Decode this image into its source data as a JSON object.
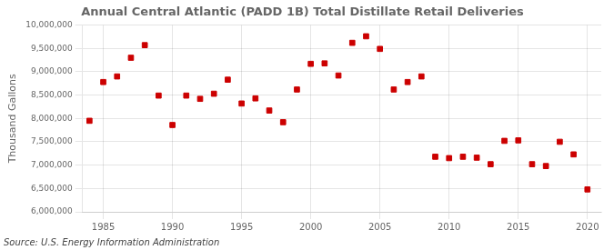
{
  "chart_data": {
    "type": "scatter",
    "title": "Annual Central Atlantic (PADD 1B) Total Distillate Retail Deliveries",
    "ylabel": "Thousand Gallons",
    "annotations": [
      "Source: U.S. Energy Information Administration"
    ],
    "x": [
      1984,
      1985,
      1986,
      1987,
      1988,
      1989,
      1990,
      1991,
      1992,
      1993,
      1994,
      1995,
      1996,
      1997,
      1998,
      1999,
      2000,
      2001,
      2002,
      2003,
      2004,
      2005,
      2006,
      2007,
      2008,
      2009,
      2010,
      2011,
      2012,
      2013,
      2014,
      2015,
      2016,
      2017,
      2018,
      2019,
      2020
    ],
    "values": [
      7950000,
      8780000,
      8900000,
      9300000,
      9570000,
      8490000,
      7860000,
      8490000,
      8420000,
      8530000,
      8830000,
      8320000,
      8430000,
      8170000,
      7920000,
      8620000,
      9170000,
      9180000,
      8920000,
      9620000,
      9760000,
      9490000,
      8620000,
      8780000,
      8900000,
      7180000,
      7150000,
      7180000,
      7160000,
      7020000,
      7520000,
      7530000,
      7020000,
      6980000,
      7500000,
      7230000,
      6480000
    ],
    "color": "#cc0000",
    "marker": "square",
    "xlim": [
      1983.5,
      2021
    ],
    "ylim": [
      6000000,
      10000000
    ],
    "xticks": [
      1985,
      1990,
      1995,
      2000,
      2005,
      2010,
      2015,
      2020
    ],
    "yticks": [
      {
        "value": 6000000,
        "label": "6,000,000"
      },
      {
        "value": 6500000,
        "label": "6,500,000"
      },
      {
        "value": 7000000,
        "label": "7,000,000"
      },
      {
        "value": 7500000,
        "label": "7,500,000"
      },
      {
        "value": 8000000,
        "label": "8,000,000"
      },
      {
        "value": 8500000,
        "label": "8,500,000"
      },
      {
        "value": 9000000,
        "label": "9,000,000"
      },
      {
        "value": 9500000,
        "label": "9,500,000"
      },
      {
        "value": 10000000,
        "label": "10,000,000"
      }
    ],
    "grid": true
  }
}
